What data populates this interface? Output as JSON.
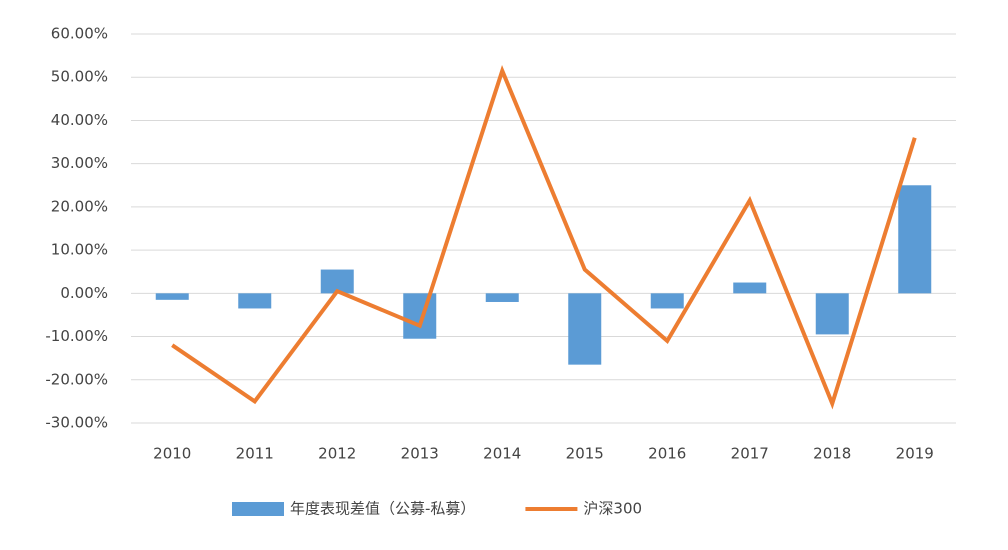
{
  "chart_data": {
    "type": "bar_line",
    "categories": [
      "2010",
      "2011",
      "2012",
      "2013",
      "2014",
      "2015",
      "2016",
      "2017",
      "2018",
      "2019"
    ],
    "series": [
      {
        "name": "年度表现差值（公募-私募）",
        "type": "bar",
        "color": "#5b9bd5",
        "values": [
          -1.5,
          -3.5,
          5.5,
          -10.5,
          -2,
          -16.5,
          -3.5,
          2.5,
          -9.5,
          25
        ]
      },
      {
        "name": "沪深300",
        "type": "line",
        "color": "#ed7d31",
        "values": [
          -12,
          -25,
          0.5,
          -7.5,
          51.5,
          5.5,
          -11,
          21.5,
          -25.5,
          36
        ]
      }
    ],
    "ylim": [
      -30,
      60
    ],
    "yticks": [
      {
        "value": -30,
        "label": "-30.00%"
      },
      {
        "value": -20,
        "label": "-20.00%"
      },
      {
        "value": -10,
        "label": "-10.00%"
      },
      {
        "value": 0,
        "label": "0.00%"
      },
      {
        "value": 10,
        "label": "10.00%"
      },
      {
        "value": 20,
        "label": "20.00%"
      },
      {
        "value": 30,
        "label": "30.00%"
      },
      {
        "value": 40,
        "label": "40.00%"
      },
      {
        "value": 50,
        "label": "50.00%"
      },
      {
        "value": 60,
        "label": "60.00%"
      }
    ],
    "grid": true,
    "legend": "bottom"
  }
}
